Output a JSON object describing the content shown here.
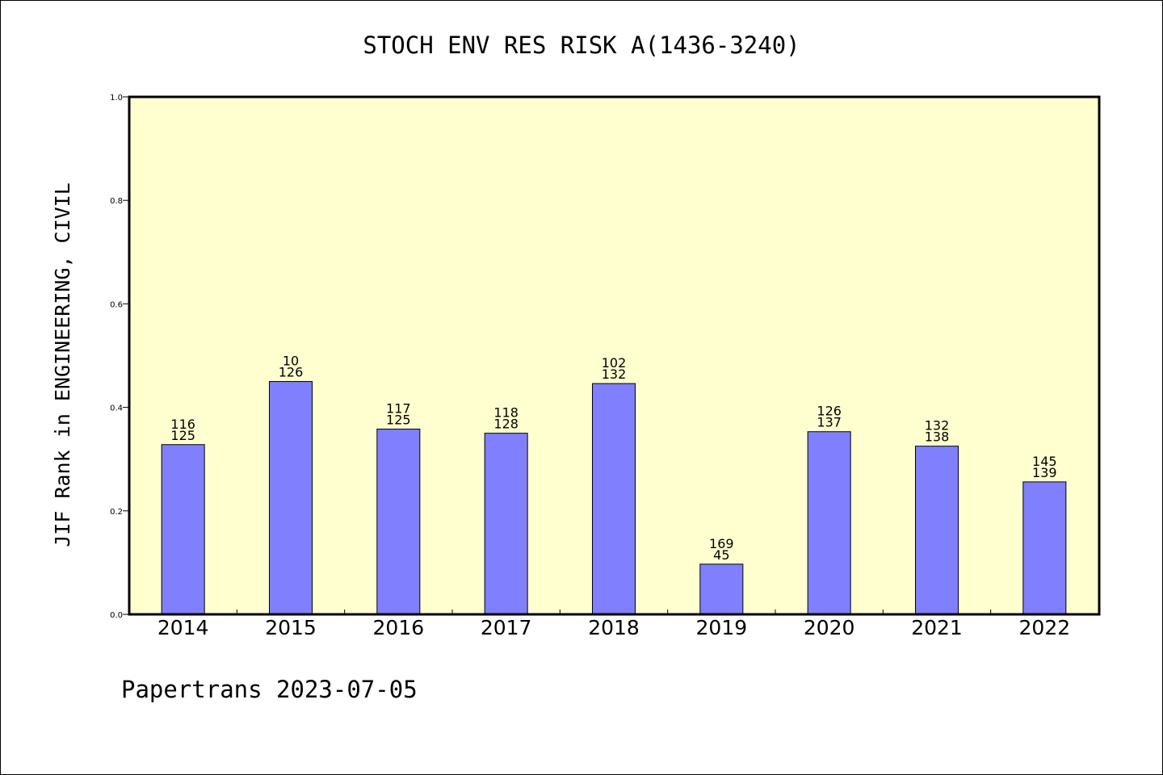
{
  "chart_data": {
    "type": "bar",
    "title": "STOCH ENV RES RISK A(1436-3240)",
    "ylabel": "JIF Rank in ENGINEERING, CIVIL",
    "xlabel": "",
    "footer": "Papertrans 2023-07-05",
    "categories": [
      "2014",
      "2015",
      "2016",
      "2017",
      "2018",
      "2019",
      "2020",
      "2021",
      "2022"
    ],
    "values": [
      0.328,
      0.45,
      0.358,
      0.35,
      0.446,
      0.097,
      0.353,
      0.325,
      0.256
    ],
    "labels_top": [
      "116",
      "10",
      "117",
      "118",
      "102",
      "169",
      "126",
      "132",
      "145"
    ],
    "labels_bottom": [
      "125",
      "126",
      "125",
      "128",
      "132",
      "45",
      "137",
      "138",
      "139"
    ],
    "ylim": [
      0,
      1.0
    ],
    "yticks": [
      "0.0",
      "0.2",
      "0.4",
      "0.6",
      "0.8",
      "1.0"
    ],
    "grid": false,
    "colors": {
      "plot_background": "#ffffd0",
      "bar_fill": "#8080ff",
      "bar_stroke": "#000000",
      "axis": "#000000"
    }
  }
}
